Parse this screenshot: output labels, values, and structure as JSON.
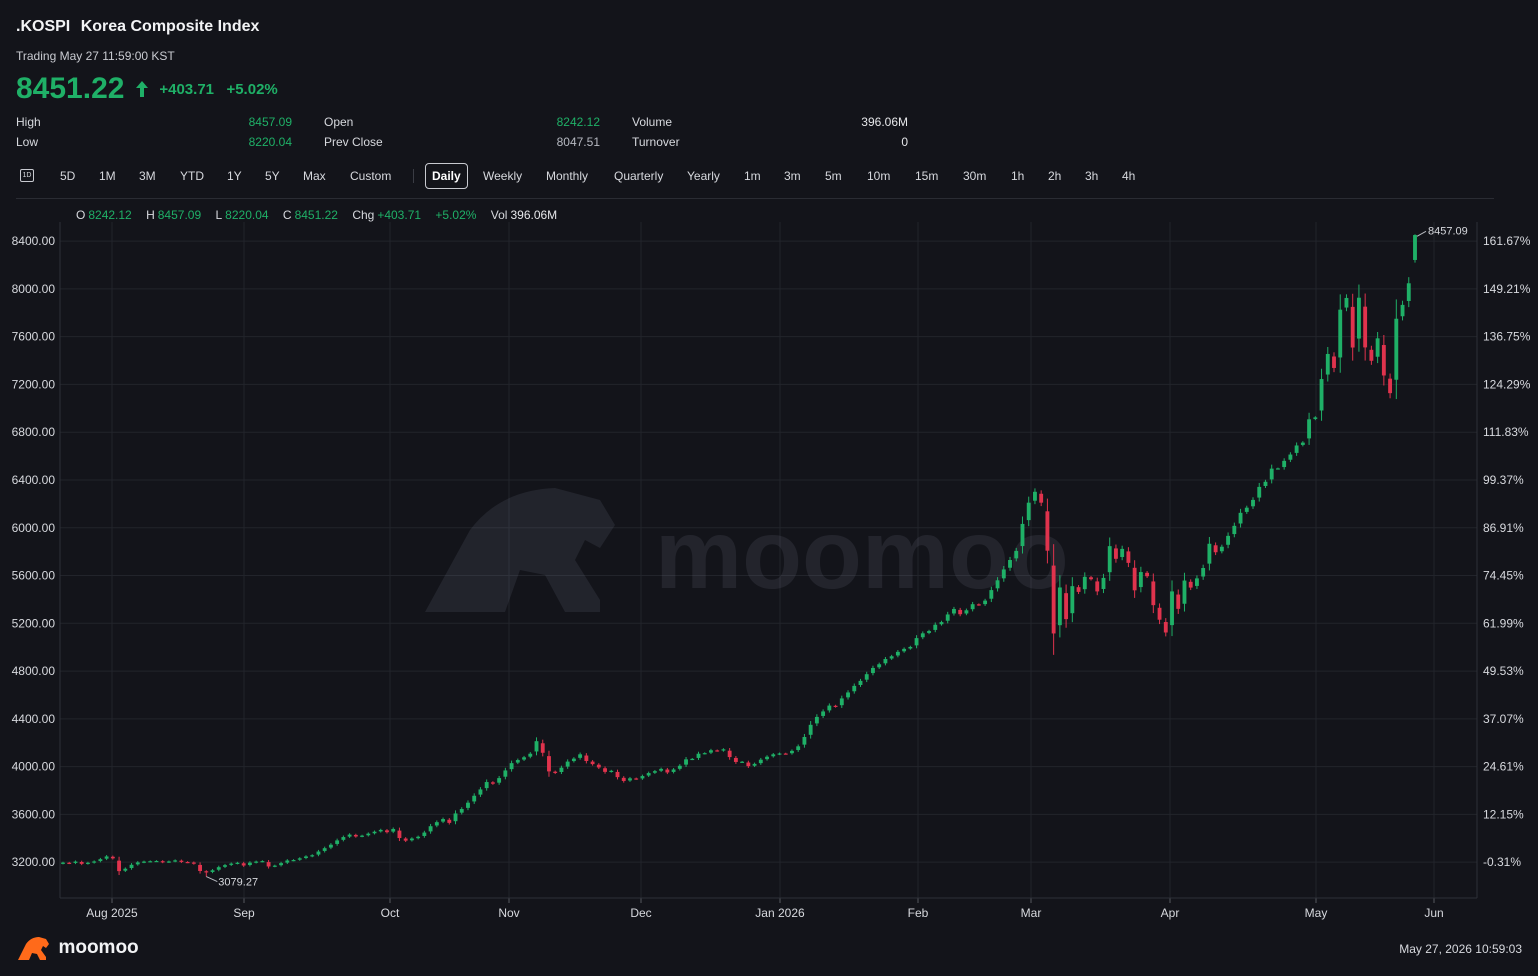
{
  "header": {
    "symbol": ".KOSPI",
    "name": "Korea Composite Index",
    "status": "Trading May 27 11:59:00 KST",
    "price": "8451.22",
    "change": "+403.71",
    "change_pct": "+5.02%",
    "stats": [
      {
        "label": "High",
        "value": "8457.09",
        "color": "up"
      },
      {
        "label": "Low",
        "value": "8220.04",
        "color": "up"
      },
      {
        "label": "Open",
        "value": "8242.12",
        "color": "up"
      },
      {
        "label": "Prev Close",
        "value": "8047.51",
        "color": "neutral"
      },
      {
        "label": "Volume",
        "value": "396.06M",
        "color": "white"
      },
      {
        "label": "Turnover",
        "value": "0",
        "color": "white"
      }
    ]
  },
  "toolbar": {
    "icon_label": "1D",
    "ranges": [
      "5D",
      "1M",
      "3M",
      "YTD",
      "1Y",
      "5Y",
      "Max",
      "Custom"
    ],
    "intervals": [
      "Daily",
      "Weekly",
      "Monthly",
      "Quarterly",
      "Yearly",
      "1m",
      "3m",
      "5m",
      "10m",
      "15m",
      "30m",
      "1h",
      "2h",
      "3h",
      "4h"
    ],
    "active": "Daily"
  },
  "ohlc_bar": {
    "o_label": "O",
    "o": "8242.12",
    "h_label": "H",
    "h": "8457.09",
    "l_label": "L",
    "l": "8220.04",
    "c_label": "C",
    "c": "8451.22",
    "chg_label": "Chg",
    "chg": "+403.71",
    "chg_pct": "+5.02%",
    "vol_label": "Vol",
    "vol": "396.06M"
  },
  "colors": {
    "up": "#1fb067",
    "down": "#e0334d",
    "background": "#13141a",
    "grid": "#22242b",
    "axis_text": "#d7d9de"
  },
  "chart_data": {
    "type": "candlestick",
    "y_left_ticks": [
      "8400.00",
      "8000.00",
      "7600.00",
      "7200.00",
      "6800.00",
      "6400.00",
      "6000.00",
      "5600.00",
      "5200.00",
      "4800.00",
      "4400.00",
      "4000.00",
      "3600.00",
      "3200.00"
    ],
    "y_right_ticks": [
      "161.67%",
      "149.21%",
      "136.75%",
      "124.29%",
      "111.83%",
      "99.37%",
      "86.91%",
      "74.45%",
      "61.99%",
      "49.53%",
      "37.07%",
      "24.61%",
      "12.15%",
      "-0.31%"
    ],
    "x_ticks": [
      "Aug 2025",
      "Sep",
      "Oct",
      "Nov",
      "Dec",
      "Jan 2026",
      "Feb",
      "Mar",
      "Apr",
      "May",
      "Jun"
    ],
    "ylim": [
      2900,
      8560
    ],
    "max_label": "8457.09",
    "min_label": "3079.27",
    "watermark": "moomoo",
    "closes": [
      3196,
      3191,
      3205,
      3186,
      3195,
      3206,
      3225,
      3248,
      3232,
      3125,
      3145,
      3178,
      3198,
      3205,
      3208,
      3210,
      3200,
      3206,
      3215,
      3202,
      3199,
      3188,
      3126,
      3115,
      3132,
      3158,
      3175,
      3188,
      3195,
      3172,
      3196,
      3205,
      3209,
      3164,
      3171,
      3192,
      3214,
      3218,
      3232,
      3248,
      3258,
      3289,
      3317,
      3346,
      3382,
      3410,
      3431,
      3415,
      3422,
      3439,
      3455,
      3470,
      3451,
      3478,
      3402,
      3380,
      3398,
      3413,
      3448,
      3501,
      3535,
      3561,
      3529,
      3608,
      3645,
      3698,
      3756,
      3809,
      3871,
      3857,
      3904,
      3968,
      4029,
      4055,
      4078,
      4108,
      4213,
      4116,
      3960,
      3947,
      3991,
      4042,
      4067,
      4103,
      4047,
      4021,
      3993,
      3956,
      3965,
      3912,
      3880,
      3902,
      3897,
      3921,
      3946,
      3962,
      3981,
      3951,
      3976,
      4007,
      4061,
      4065,
      4108,
      4113,
      4137,
      4132,
      4145,
      4080,
      4039,
      4041,
      4004,
      4023,
      4058,
      4083,
      4103,
      4110,
      4108,
      4132,
      4170,
      4248,
      4350,
      4416,
      4462,
      4511,
      4502,
      4571,
      4621,
      4676,
      4718,
      4774,
      4826,
      4857,
      4901,
      4924,
      4961,
      4986,
      5002,
      5076,
      5116,
      5135,
      5188,
      5210,
      5274,
      5320,
      5276,
      5309,
      5360,
      5354,
      5390,
      5478,
      5560,
      5651,
      5730,
      5806,
      6032,
      6210,
      6301,
      6210,
      5808,
      5115,
      5500,
      5235,
      5511,
      5463,
      5589,
      5569,
      5467,
      5580,
      5846,
      5740,
      5823,
      5706,
      5476,
      5629,
      5594,
      5352,
      5230,
      5123,
      5467,
      5321,
      5558,
      5499,
      5576,
      5663,
      5866,
      5795,
      5841,
      5932,
      6016,
      6125,
      6168,
      6233,
      6342,
      6385,
      6495,
      6497,
      6560,
      6613,
      6689,
      6713,
      6908,
      6924,
      7245,
      7455,
      7338,
      7826,
      7924,
      7509,
      7926,
      7510,
      7398,
      7586,
      7275,
      7127,
      7750,
      7866,
      8047,
      8451
    ]
  }
}
